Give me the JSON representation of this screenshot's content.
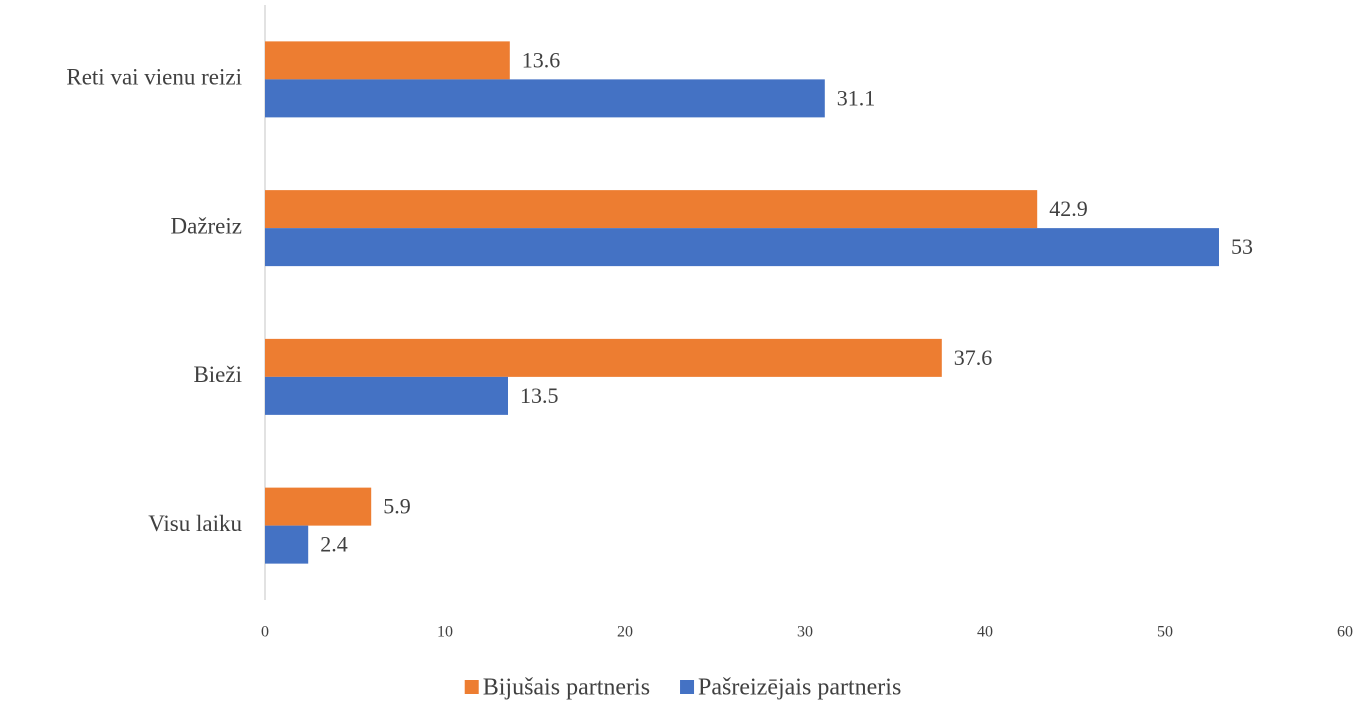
{
  "chart_data": {
    "type": "hbar",
    "categories": [
      "Reti vai vienu reizi",
      "Dažreiz",
      "Bieži",
      "Visu laiku"
    ],
    "series": [
      {
        "name": "Bijušais partneris",
        "color": "#ED7D31",
        "values": [
          13.6,
          42.9,
          37.6,
          5.9
        ]
      },
      {
        "name": "Pašreizējais partneris",
        "color": "#4472C4",
        "values": [
          31.1,
          53,
          13.5,
          2.4
        ]
      }
    ],
    "xlim": [
      0,
      60
    ],
    "xticks": [
      0,
      10,
      20,
      30,
      40,
      50,
      60
    ],
    "grid": false,
    "legend": "bottom"
  }
}
